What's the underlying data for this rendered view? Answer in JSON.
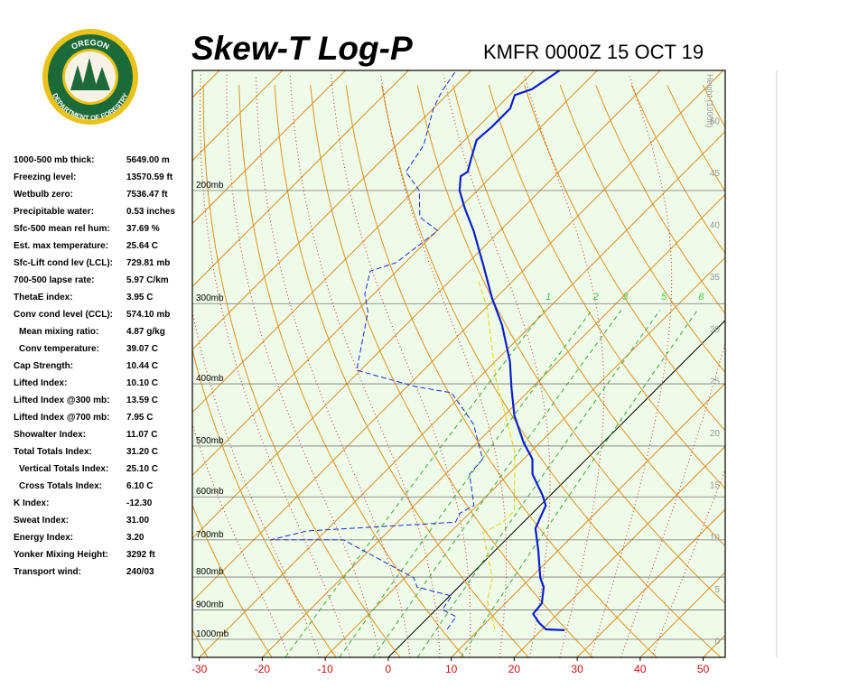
{
  "logo": {
    "top": "OREGON",
    "bottom": "DEPARTMENT OF FORESTRY"
  },
  "stats": [
    {
      "label": "1000-500 mb thick:",
      "value": "5649.00 m"
    },
    {
      "label": "Freezing level:",
      "value": "13570.59 ft"
    },
    {
      "label": "Wetbulb zero:",
      "value": "7536.47 ft"
    },
    {
      "label": "Precipitable water:",
      "value": "0.53 inches"
    },
    {
      "label": "Sfc-500 mean rel hum:",
      "value": "37.69 %"
    },
    {
      "label": "Est. max temperature:",
      "value": "25.64 C"
    },
    {
      "label": "Sfc-Lift cond lev (LCL):",
      "value": "729.81 mb"
    },
    {
      "label": "700-500 lapse rate:",
      "value": "5.97 C/km"
    },
    {
      "label": "ThetaE index:",
      "value": "3.95 C"
    },
    {
      "label": "Conv cond level (CCL):",
      "value": "574.10 mb",
      "sub": [
        {
          "label": "Mean mixing ratio:",
          "value": "4.87 g/kg"
        },
        {
          "label": "Conv temperature:",
          "value": "39.07 C"
        }
      ]
    },
    {
      "label": "Cap Strength:",
      "value": "10.44 C"
    },
    {
      "label": "Lifted Index:",
      "value": "10.10 C"
    },
    {
      "label": "Lifted Index @300 mb:",
      "value": "13.59 C"
    },
    {
      "label": "Lifted Index @700 mb:",
      "value": "7.95 C"
    },
    {
      "label": "Showalter Index:",
      "value": "11.07 C"
    },
    {
      "label": "Total Totals Index:",
      "value": "31.20 C",
      "sub": [
        {
          "label": "Vertical Totals Index:",
          "value": "25.10 C"
        },
        {
          "label": "Cross Totals Index:",
          "value": "6.10 C"
        }
      ]
    },
    {
      "label": "K Index:",
      "value": "-12.30"
    },
    {
      "label": "Sweat Index:",
      "value": "31.00"
    },
    {
      "label": "Energy Index:",
      "value": "3.20"
    },
    {
      "label": "Yonker Mixing Height:",
      "value": "3292 ft"
    },
    {
      "label": "Transport wind:",
      "value": "240/03"
    }
  ],
  "chart_data": {
    "type": "skewt",
    "title": "Skew-T Log-P",
    "subtitle": "KMFR 0000Z 15 OCT 19",
    "xlim": [
      -31.1,
      53.5
    ],
    "xticks": [
      -30,
      -20,
      -10,
      0,
      10,
      20,
      30,
      40,
      50
    ],
    "ylim": [
      1067,
      130
    ],
    "ylog": true,
    "yticks": [
      {
        "value": 200,
        "label": "200mb"
      },
      {
        "value": 300,
        "label": "300mb"
      },
      {
        "value": 400,
        "label": "400mb"
      },
      {
        "value": 500,
        "label": "500mb"
      },
      {
        "value": 600,
        "label": "600mb"
      },
      {
        "value": 700,
        "label": "700mb"
      },
      {
        "value": 800,
        "label": "800mb"
      },
      {
        "value": 900,
        "label": "900mb"
      },
      {
        "value": 1000,
        "label": "1000mb"
      }
    ],
    "height_label": "Height (1000ft)",
    "height_lim": [
      -1.6,
      54.8
    ],
    "height_ticks": [
      0,
      5,
      10,
      15,
      20,
      25,
      30,
      35,
      40,
      45,
      50
    ],
    "mixing_ratio_labels": [
      1,
      2,
      3,
      5,
      8
    ],
    "series": [
      {
        "color": "#0a1ecf",
        "dashed": false,
        "x": [
          23.7,
          20.6,
          18.5,
          16.1,
          15.8,
          13.5,
          11.5,
          6.9,
          2.9,
          1.7,
          0.9,
          -1.3,
          -6.2,
          -8.6,
          -12.6,
          -18.4,
          -23.1,
          -27.7,
          -34.7,
          -40.6,
          -47.7,
          -54.2,
          -59.2,
          -62.8,
          -64.9,
          -64.5,
          -66.1,
          -68.1,
          -67.8,
          -67.8,
          -69.2,
          -67.4,
          -66.0
        ],
        "y": [
          968,
          965,
          943,
          913,
          879,
          829,
          802,
          728,
          672,
          640,
          619,
          596,
          553,
          524,
          494,
          448,
          407,
          369,
          324,
          294,
          259,
          231,
          213,
          200,
          190,
          187,
          178,
          167,
          159,
          149,
          142,
          139,
          130
        ]
      },
      {
        "color": "#1a2ad8",
        "dashed": true,
        "x": [
          4.9,
          4.3,
          1.0,
          0.3,
          -6.6,
          -8.6,
          -25.8,
          -37.3,
          -33.0,
          -10.8,
          -11.5,
          -10.5,
          -16.2,
          -16.5,
          -19.8,
          -23.4,
          -27.0,
          -32.0,
          -38.7,
          -50.6,
          -58.1,
          -61.4,
          -64.2,
          -61.4,
          -59.9,
          -64.9,
          -69.2,
          -74.3,
          -75.7,
          -80.0,
          -81.4,
          -82.4
        ],
        "y": [
          965,
          922,
          899,
          856,
          829,
          802,
          700,
          700,
          678,
          657,
          636,
          619,
          553,
          524,
          494,
          463,
          441,
          413,
          404,
          381,
          309,
          290,
          267,
          259,
          231,
          220,
          200,
          187,
          170,
          149,
          140,
          130
        ]
      },
      {
        "color": "#e6d000",
        "dashed": true,
        "x": [
          12.5,
          6.7,
          3.9,
          -4.7,
          -3.3,
          -3.3,
          -12.6,
          -27.0,
          -39.9,
          -45.6
        ],
        "y": [
          965,
          870,
          802,
          683,
          657,
          630,
          510,
          394,
          304,
          276
        ]
      }
    ]
  }
}
